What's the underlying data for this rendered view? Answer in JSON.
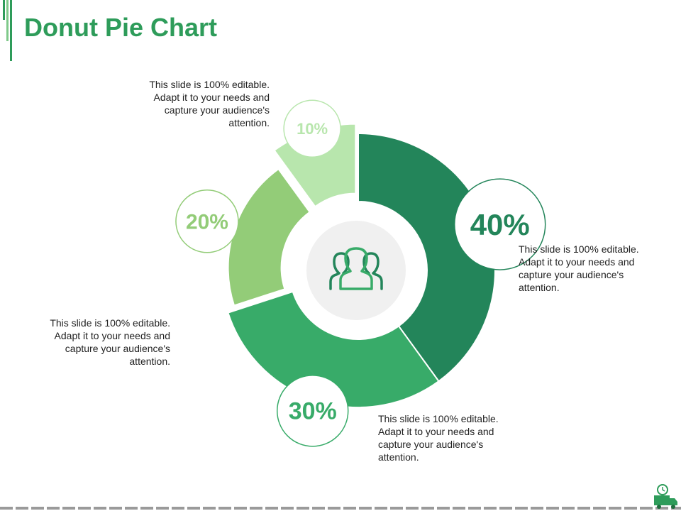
{
  "title": "Donut Pie Chart",
  "colors": {
    "accent": "#2e9c5a",
    "segment_40": "#23855a",
    "segment_30": "#38ab69",
    "segment_20": "#93cc78",
    "segment_10": "#b8e6ad",
    "center_circle": "#f0f0f0"
  },
  "notes": {
    "top_left": "This slide is 100% editable.\nAdapt it to your needs and\ncapture your audience's\nattention.",
    "right": "This slide is 100% editable.\nAdapt it to your needs and\ncapture your audience's\nattention.",
    "bottom": "This slide is 100% editable.\nAdapt it to your needs and\ncapture your audience's\nattention.",
    "left": "This slide is 100% editable.\nAdapt it to your needs and\ncapture your audience's\nattention."
  },
  "center_icon": "people-group-icon",
  "chart_data": {
    "type": "pie",
    "categories": [
      "40%",
      "30%",
      "20%",
      "10%"
    ],
    "values": [
      40,
      30,
      20,
      10
    ],
    "labels": [
      "40%",
      "30%",
      "20%",
      "10%"
    ],
    "title": "Donut Pie Chart"
  }
}
